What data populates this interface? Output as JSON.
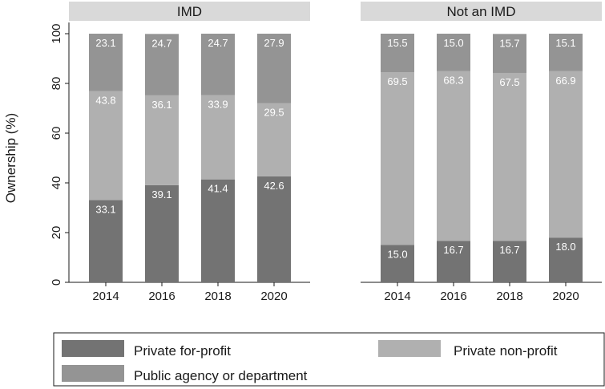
{
  "chart_data": {
    "type": "bar",
    "stacked": true,
    "ylabel": "Ownership (%)",
    "xlabel": "",
    "ylim": [
      0,
      100
    ],
    "yticks": [
      0,
      20,
      40,
      60,
      80,
      100
    ],
    "categories": [
      "2014",
      "2016",
      "2018",
      "2020"
    ],
    "legend_position": "bottom",
    "series_meta": [
      {
        "name": "Private for-profit",
        "color": "#737373"
      },
      {
        "name": "Private non-profit",
        "color": "#b0b0b0"
      },
      {
        "name": "Public agency or department",
        "color": "#949494"
      }
    ],
    "panels": [
      {
        "title": "IMD",
        "series": [
          {
            "name": "Private for-profit",
            "values": [
              33.1,
              39.1,
              41.4,
              42.6
            ],
            "labels": [
              "33.1",
              "39.1",
              "41.4",
              "42.6"
            ]
          },
          {
            "name": "Private non-profit",
            "values": [
              43.8,
              36.1,
              33.9,
              29.5
            ],
            "labels": [
              "43.8",
              "36.1",
              "33.9",
              "29.5"
            ]
          },
          {
            "name": "Public agency or department",
            "values": [
              23.1,
              24.7,
              24.7,
              27.9
            ],
            "labels": [
              "23.1",
              "24.7",
              "24.7",
              "27.9"
            ]
          }
        ]
      },
      {
        "title": "Not an IMD",
        "series": [
          {
            "name": "Private for-profit",
            "values": [
              15.0,
              16.7,
              16.7,
              18.0
            ],
            "labels": [
              "15.0",
              "16.7",
              "16.7",
              "18.0"
            ]
          },
          {
            "name": "Private non-profit",
            "values": [
              69.5,
              68.3,
              67.5,
              66.9
            ],
            "labels": [
              "69.5",
              "68.3",
              "67.5",
              "66.9"
            ]
          },
          {
            "name": "Public agency or department",
            "values": [
              15.5,
              15.0,
              15.7,
              15.1
            ],
            "labels": [
              "15.5",
              "15.0",
              "15.7",
              "15.1"
            ]
          }
        ]
      }
    ]
  }
}
